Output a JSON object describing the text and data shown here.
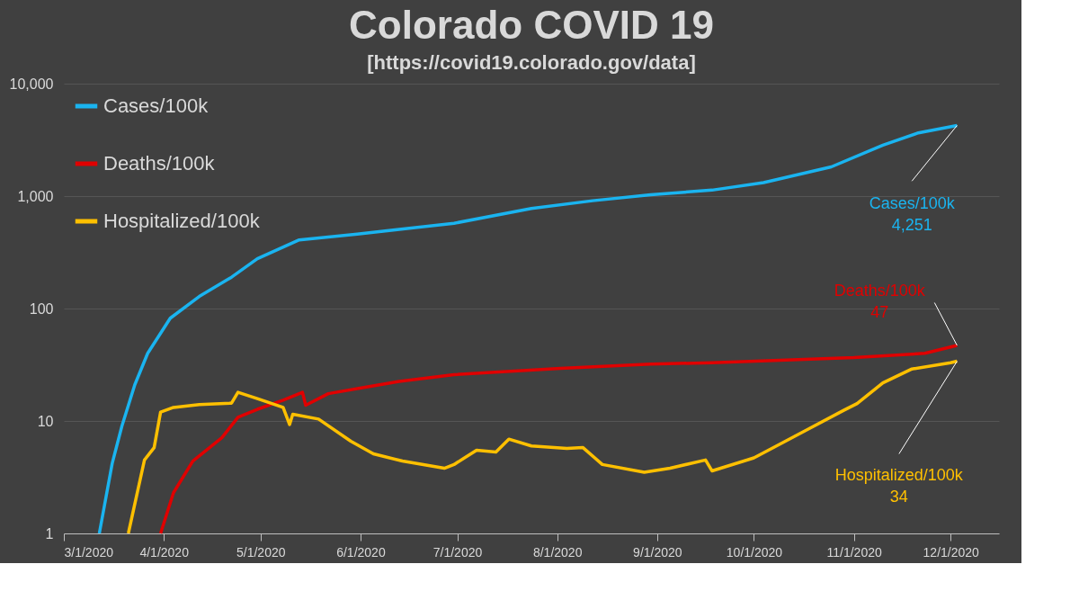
{
  "chart_data": {
    "type": "line",
    "title": "Colorado COVID 19",
    "subtitle": "[https://covid19.colorado.gov/data]",
    "log": "y",
    "grid": "y",
    "legend": "top left",
    "line_style": "solid",
    "marker": "none",
    "xlim": [
      "2020-03-01",
      "2020-12-16"
    ],
    "xticks": [
      {
        "value": "2020-03-01",
        "label": "3/1/2020"
      },
      {
        "value": "2020-04-01",
        "label": "4/1/2020"
      },
      {
        "value": "2020-05-01",
        "label": "5/1/2020"
      },
      {
        "value": "2020-06-01",
        "label": "6/1/2020"
      },
      {
        "value": "2020-07-01",
        "label": "7/1/2020"
      },
      {
        "value": "2020-08-01",
        "label": "8/1/2020"
      },
      {
        "value": "2020-09-01",
        "label": "9/1/2020"
      },
      {
        "value": "2020-10-01",
        "label": "10/1/2020"
      },
      {
        "value": "2020-11-01",
        "label": "11/1/2020"
      },
      {
        "value": "2020-12-01",
        "label": "12/1/2020"
      }
    ],
    "ylim": [
      1,
      10000
    ],
    "yticks": [
      1,
      10,
      100,
      {
        "value": 1000,
        "label": "1,000"
      },
      {
        "value": 10000,
        "label": "10,000"
      }
    ],
    "series": [
      {
        "name": "Cases/100k",
        "color": "#1ab4f0",
        "x": [
          "2020-03-12",
          "2020-03-16",
          "2020-03-19",
          "2020-03-23",
          "2020-03-27",
          "2020-04-03",
          "2020-04-12",
          "2020-04-22",
          "2020-04-30",
          "2020-05-13",
          "2020-05-31",
          "2020-06-30",
          "2020-07-24",
          "2020-08-12",
          "2020-08-30",
          "2020-09-18",
          "2020-10-04",
          "2020-10-25",
          "2020-11-10",
          "2020-11-21",
          "2020-12-03"
        ],
        "values": [
          1,
          4.2,
          9,
          21,
          40,
          82,
          128,
          190,
          277,
          408,
          460,
          573,
          775,
          910,
          1030,
          1130,
          1320,
          1820,
          2840,
          3650,
          4251
        ]
      },
      {
        "name": "Deaths/100k",
        "color": "#e00000",
        "x": [
          "2020-03-31",
          "2020-04-04",
          "2020-04-10",
          "2020-04-19",
          "2020-04-24",
          "2020-04-30",
          "2020-05-08",
          "2020-05-14",
          "2020-05-15",
          "2020-05-22",
          "2020-05-31",
          "2020-06-13",
          "2020-06-30",
          "2020-08-02",
          "2020-08-30",
          "2020-09-18",
          "2020-11-01",
          "2020-11-23",
          "2020-12-03"
        ],
        "values": [
          1,
          2.3,
          4.4,
          7.1,
          10.8,
          12.7,
          15.3,
          18,
          13.8,
          17.5,
          19.4,
          22.5,
          25.8,
          29.4,
          32,
          33,
          36.6,
          40,
          47
        ]
      },
      {
        "name": "Hospitalized/100k",
        "color": "#ffc000",
        "x": [
          "2020-03-21",
          "2020-03-26",
          "2020-03-29",
          "2020-03-31",
          "2020-04-04",
          "2020-04-12",
          "2020-04-22",
          "2020-04-24",
          "2020-04-30",
          "2020-05-08",
          "2020-05-10",
          "2020-05-11",
          "2020-05-19",
          "2020-05-29",
          "2020-06-05",
          "2020-06-14",
          "2020-06-27",
          "2020-06-30",
          "2020-07-07",
          "2020-07-13",
          "2020-07-17",
          "2020-07-24",
          "2020-08-04",
          "2020-08-09",
          "2020-08-15",
          "2020-08-28",
          "2020-09-05",
          "2020-09-16",
          "2020-09-18",
          "2020-10-01",
          "2020-10-08",
          "2020-10-18",
          "2020-10-29",
          "2020-11-02",
          "2020-11-10",
          "2020-11-19",
          "2020-12-01",
          "2020-12-03"
        ],
        "values": [
          1,
          4.5,
          5.8,
          12,
          13.2,
          14,
          14.4,
          18,
          15.8,
          13.2,
          9.3,
          11.5,
          10.4,
          6.6,
          5.1,
          4.4,
          3.8,
          4.1,
          5.5,
          5.3,
          6.9,
          6.0,
          5.7,
          5.8,
          4.1,
          3.5,
          3.8,
          4.5,
          3.6,
          4.7,
          6.0,
          8.5,
          12.5,
          14.3,
          21.8,
          29,
          33,
          34
        ]
      }
    ],
    "annotations": [
      {
        "text": "Cases/100k\n4,251",
        "x": "2020-12-03",
        "y": 4251
      },
      {
        "text": "Deaths/100k\n47",
        "x": "2020-12-03",
        "y": 47
      },
      {
        "text": "Hospitalized/100k\n34",
        "x": "2020-12-03",
        "y": 34
      }
    ]
  }
}
